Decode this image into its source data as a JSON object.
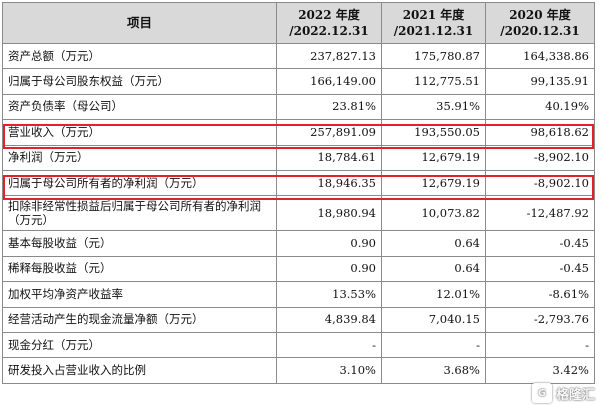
{
  "header": {
    "label": "项目",
    "cols": [
      {
        "year": "2022 年度",
        "date": "/2022.12.31"
      },
      {
        "year": "2021 年度",
        "date": "/2021.12.31"
      },
      {
        "year": "2020 年度",
        "date": "/2020.12.31"
      }
    ]
  },
  "rows": [
    {
      "label": "资产总额（万元）",
      "values": [
        "237,827.13",
        "175,780.87",
        "164,338.86"
      ]
    },
    {
      "label": "归属于母公司股东权益（万元）",
      "values": [
        "166,149.00",
        "112,775.51",
        "99,135.91"
      ]
    },
    {
      "label": "资产负债率（母公司）",
      "values": [
        "23.81%",
        "35.91%",
        "40.19%"
      ]
    },
    {
      "label": "营业收入（万元）",
      "values": [
        "257,891.09",
        "193,550.05",
        "98,618.62"
      ]
    },
    {
      "label": "净利润（万元）",
      "values": [
        "18,784.61",
        "12,679.19",
        "-8,902.10"
      ]
    },
    {
      "label": "归属于母公司所有者的净利润（万元）",
      "values": [
        "18,946.35",
        "12,679.19",
        "-8,902.10"
      ]
    },
    {
      "label": "扣除非经常性损益后归属于母公司所有者的净利润（万元）",
      "values": [
        "18,980.94",
        "10,073.82",
        "-12,487.92"
      ]
    },
    {
      "label": "基本每股收益（元）",
      "values": [
        "0.90",
        "0.64",
        "-0.45"
      ]
    },
    {
      "label": "稀释每股收益（元）",
      "values": [
        "0.90",
        "0.64",
        "-0.45"
      ]
    },
    {
      "label": "加权平均净资产收益率",
      "values": [
        "13.53%",
        "12.01%",
        "-8.61%"
      ]
    },
    {
      "label": "经营活动产生的现金流量净额（万元）",
      "values": [
        "4,839.84",
        "7,040.15",
        "-2,793.76"
      ]
    },
    {
      "label": "现金分红（万元）",
      "values": [
        "-",
        "-",
        "-"
      ]
    },
    {
      "label": "研发投入占营业收入的比例",
      "values": [
        "3.10%",
        "3.68%",
        "3.42%"
      ]
    }
  ],
  "highlight_color": "#e0232a",
  "watermark": {
    "text": "格隆汇",
    "icon": "G-logo-icon"
  }
}
